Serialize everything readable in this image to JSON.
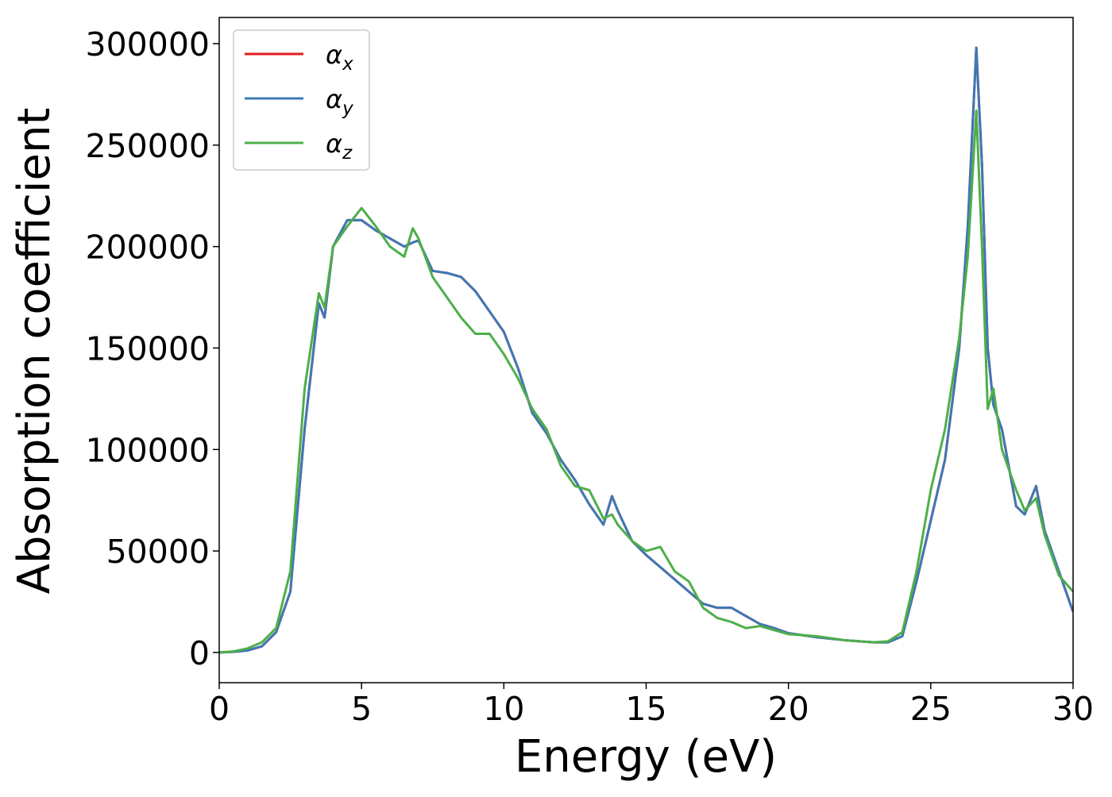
{
  "chart_data": {
    "type": "line",
    "xlabel": "Energy (eV)",
    "ylabel": "Absorption coefficient",
    "x": [
      0,
      0.5,
      1,
      1.5,
      2,
      2.5,
      3,
      3.5,
      3.7,
      4,
      4.5,
      5,
      5.5,
      6,
      6.5,
      6.8,
      7,
      7.5,
      8,
      8.5,
      9,
      9.5,
      10,
      10.5,
      11,
      11.5,
      12,
      12.5,
      13,
      13.5,
      13.8,
      14,
      14.5,
      15,
      15.5,
      16,
      16.5,
      17,
      17.5,
      18,
      18.5,
      19,
      19.5,
      20,
      21,
      22,
      23,
      23.5,
      24,
      24.5,
      25,
      25.5,
      26,
      26.3,
      26.6,
      26.8,
      27,
      27.2,
      27.5,
      28,
      28.3,
      28.7,
      29,
      29.5,
      30
    ],
    "series": [
      {
        "name": "αx",
        "color": "#e41a1c",
        "values": [
          0,
          300,
          1000,
          3000,
          10000,
          30000,
          110000,
          172000,
          165000,
          200000,
          213000,
          213000,
          208000,
          204000,
          200000,
          202000,
          203000,
          188000,
          187000,
          185000,
          178000,
          168000,
          158000,
          140000,
          118000,
          108000,
          95000,
          85000,
          73000,
          63000,
          77000,
          70000,
          55000,
          48000,
          42000,
          36000,
          30000,
          24000,
          22000,
          22000,
          18000,
          14000,
          12000,
          9500,
          7500,
          6000,
          5000,
          5000,
          8000,
          35000,
          65000,
          95000,
          150000,
          210000,
          298000,
          240000,
          150000,
          122000,
          110000,
          72000,
          68000,
          82000,
          60000,
          40000,
          20000
        ]
      },
      {
        "name": "αy",
        "color": "#3f78b5",
        "values": [
          0,
          300,
          1000,
          3000,
          10000,
          30000,
          110000,
          172000,
          165000,
          200000,
          213000,
          213000,
          208000,
          204000,
          200000,
          202000,
          203000,
          188000,
          187000,
          185000,
          178000,
          168000,
          158000,
          140000,
          118000,
          108000,
          95000,
          85000,
          73000,
          63000,
          77000,
          70000,
          55000,
          48000,
          42000,
          36000,
          30000,
          24000,
          22000,
          22000,
          18000,
          14000,
          12000,
          9500,
          7500,
          6000,
          5000,
          5000,
          8000,
          35000,
          65000,
          95000,
          150000,
          210000,
          298000,
          240000,
          150000,
          122000,
          110000,
          72000,
          68000,
          82000,
          60000,
          40000,
          20000
        ]
      },
      {
        "name": "αz",
        "color": "#4daf4a",
        "values": [
          0,
          500,
          2000,
          5000,
          12000,
          40000,
          130000,
          177000,
          170000,
          200000,
          210000,
          219000,
          210000,
          200000,
          195000,
          209000,
          204000,
          185000,
          175000,
          165000,
          157000,
          157000,
          147000,
          135000,
          120000,
          110000,
          92000,
          82000,
          80000,
          66000,
          68000,
          63000,
          55000,
          50000,
          52000,
          40000,
          35000,
          22000,
          17000,
          15000,
          12000,
          13000,
          11000,
          9000,
          8000,
          6000,
          5000,
          5500,
          10000,
          40000,
          80000,
          110000,
          155000,
          195000,
          267000,
          200000,
          120000,
          130000,
          100000,
          80000,
          70000,
          76000,
          58000,
          38000,
          30000
        ]
      }
    ],
    "xlim": [
      0,
      30
    ],
    "xticks": [
      0,
      5,
      10,
      15,
      20,
      25,
      30
    ],
    "ylim": [
      -14900,
      312900
    ],
    "yticks": [
      0,
      50000,
      100000,
      150000,
      200000,
      250000,
      300000
    ],
    "legend": "upper left"
  }
}
